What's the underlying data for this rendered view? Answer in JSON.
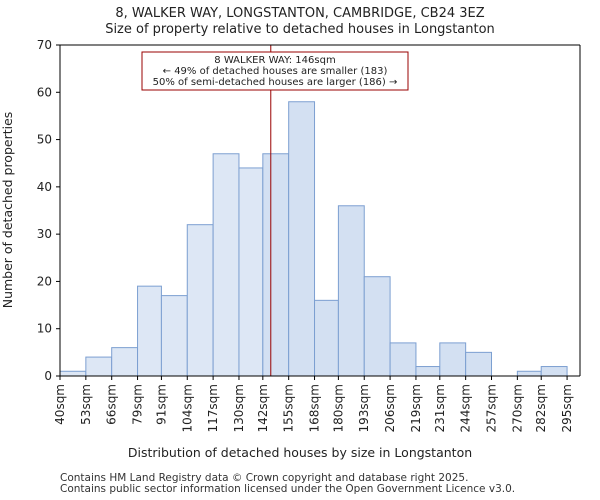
{
  "chart_data": {
    "type": "bar",
    "title": "8, WALKER WAY, LONGSTANTON, CAMBRIDGE, CB24 3EZ",
    "subtitle": "Size of property relative to detached houses in Longstanton",
    "xlabel": "Distribution of detached houses by size in Longstanton",
    "ylabel": "Number of detached properties",
    "ylim": [
      0,
      70
    ],
    "yticks": [
      0,
      10,
      20,
      30,
      40,
      50,
      60,
      70
    ],
    "xlim": [
      40,
      301.5
    ],
    "x_tick_values": [
      40,
      53,
      66,
      79,
      91,
      104,
      117,
      130,
      142,
      155,
      168,
      180,
      193,
      206,
      219,
      231,
      244,
      257,
      270,
      282,
      295
    ],
    "x_tick_labels": [
      "40sqm",
      "53sqm",
      "66sqm",
      "79sqm",
      "91sqm",
      "104sqm",
      "117sqm",
      "130sqm",
      "142sqm",
      "155sqm",
      "168sqm",
      "180sqm",
      "193sqm",
      "206sqm",
      "219sqm",
      "231sqm",
      "244sqm",
      "257sqm",
      "270sqm",
      "282sqm",
      "295sqm"
    ],
    "bin_edges": [
      40,
      53,
      66,
      79,
      91,
      104,
      117,
      130,
      142,
      155,
      168,
      180,
      193,
      206,
      219,
      231,
      244,
      257,
      270,
      282,
      295,
      308
    ],
    "values": [
      1,
      4,
      6,
      19,
      17,
      32,
      47,
      44,
      47,
      58,
      16,
      36,
      21,
      7,
      2,
      7,
      5,
      0,
      1,
      2,
      0
    ],
    "marker_value": 146,
    "annotation": {
      "line1": "8 WALKER WAY: 146sqm",
      "line2": "← 49% of detached houses are smaller (183)",
      "line3": "50% of semi-detached houses are larger (186) →"
    },
    "colors": {
      "bar_fill": "#dde7f5",
      "bar_fill_highlight": "#d3e0f2",
      "bar_edge": "#7c9fd1",
      "marker": "#990000",
      "axis": "#000000"
    }
  },
  "footer": {
    "line1": "Contains HM Land Registry data © Crown copyright and database right 2025.",
    "line2": "Contains public sector information licensed under the Open Government Licence v3.0."
  }
}
